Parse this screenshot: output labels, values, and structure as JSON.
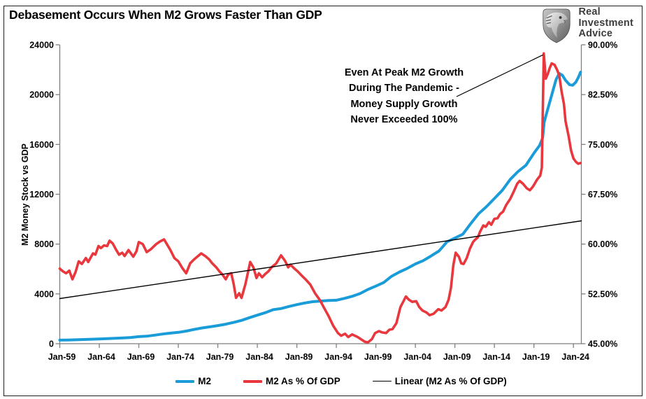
{
  "title": "Debasement Occurs When M2 Grows Faster Than GDP",
  "logo": {
    "lines": [
      "Real",
      "Investment",
      "Advice"
    ]
  },
  "annotation": {
    "text": "Even At Peak M2 Growth\nDuring The Pandemic -\nMoney Supply Growth\nNever Exceeded 100%"
  },
  "colors": {
    "m2_blue": "#199CD8",
    "pct_red": "#E8383D",
    "trend_black": "#000000",
    "axis_gray": "#7f7f7f",
    "logo_text": "#3d3d3d"
  },
  "legend": [
    {
      "label": "M2",
      "color": "#199CD8",
      "thick": 4
    },
    {
      "label": "M2 As % Of GDP",
      "color": "#E8383D",
      "thick": 4
    },
    {
      "label": "Linear (M2 As % Of GDP)",
      "color": "#000000",
      "thick": 1.5
    }
  ],
  "chart_data": {
    "type": "line",
    "title": "Debasement Occurs When M2 Grows Faster Than GDP",
    "grid": false,
    "legend_position": "bottom",
    "x_axis": {
      "tick_labels": [
        "Jan-59",
        "Jan-64",
        "Jan-69",
        "Jan-74",
        "Jan-79",
        "Jan-84",
        "Jan-89",
        "Jan-94",
        "Jan-99",
        "Jan-04",
        "Jan-09",
        "Jan-14",
        "Jan-19",
        "Jan-24"
      ],
      "tick_years": [
        1959,
        1964,
        1969,
        1974,
        1979,
        1984,
        1989,
        1994,
        1999,
        2004,
        2009,
        2014,
        2019,
        2024
      ],
      "range_years": [
        1959,
        2025
      ]
    },
    "left_axis": {
      "label": "M2 Money Stock vs GDP",
      "tick_values": [
        0,
        4000,
        8000,
        12000,
        16000,
        20000,
        24000
      ],
      "tick_labels": [
        "0",
        "4000",
        "8000",
        "12000",
        "16000",
        "20000",
        "24000"
      ],
      "range": [
        0,
        24000
      ]
    },
    "right_axis": {
      "tick_values": [
        45,
        52.5,
        60,
        67.5,
        75,
        82.5,
        90
      ],
      "tick_labels": [
        "45.00%",
        "52.50%",
        "60.00%",
        "67.50%",
        "75.00%",
        "82.50%",
        "90.00%"
      ],
      "range": [
        45,
        90
      ]
    },
    "series": [
      {
        "name": "M2",
        "axis": "left",
        "color": "#199CD8",
        "width": 4,
        "points": [
          [
            1959,
            287
          ],
          [
            1960,
            298
          ],
          [
            1961,
            315
          ],
          [
            1962,
            335
          ],
          [
            1963,
            357
          ],
          [
            1964,
            382
          ],
          [
            1965,
            408
          ],
          [
            1966,
            432
          ],
          [
            1967,
            462
          ],
          [
            1968,
            500
          ],
          [
            1969,
            567
          ],
          [
            1970,
            601
          ],
          [
            1971,
            686
          ],
          [
            1972,
            776
          ],
          [
            1973,
            850
          ],
          [
            1974,
            908
          ],
          [
            1975,
            1009
          ],
          [
            1976,
            1147
          ],
          [
            1977,
            1263
          ],
          [
            1978,
            1357
          ],
          [
            1979,
            1457
          ],
          [
            1980,
            1570
          ],
          [
            1981,
            1708
          ],
          [
            1982,
            1873
          ],
          [
            1983,
            2092
          ],
          [
            1984,
            2295
          ],
          [
            1985,
            2489
          ],
          [
            1986,
            2729
          ],
          [
            1987,
            2824
          ],
          [
            1988,
            2990
          ],
          [
            1989,
            3138
          ],
          [
            1990,
            3270
          ],
          [
            1991,
            3372
          ],
          [
            1992,
            3425
          ],
          [
            1993,
            3474
          ],
          [
            1994,
            3493
          ],
          [
            1995,
            3634
          ],
          [
            1996,
            3803
          ],
          [
            1997,
            4022
          ],
          [
            1998,
            4357
          ],
          [
            1999,
            4627
          ],
          [
            2000,
            4913
          ],
          [
            2001,
            5421
          ],
          [
            2002,
            5763
          ],
          [
            2003,
            6051
          ],
          [
            2004,
            6400
          ],
          [
            2005,
            6669
          ],
          [
            2006,
            7047
          ],
          [
            2007,
            7447
          ],
          [
            2008,
            8180
          ],
          [
            2009,
            8480
          ],
          [
            2010,
            8790
          ],
          [
            2011,
            9640
          ],
          [
            2012,
            10440
          ],
          [
            2013,
            11010
          ],
          [
            2014,
            11660
          ],
          [
            2015,
            12320
          ],
          [
            2016,
            13190
          ],
          [
            2017,
            13830
          ],
          [
            2018,
            14340
          ],
          [
            2019,
            15300
          ],
          [
            2019.7,
            15900
          ],
          [
            2020.1,
            16500
          ],
          [
            2020.3,
            17800
          ],
          [
            2020.6,
            18500
          ],
          [
            2021,
            19400
          ],
          [
            2021.4,
            20300
          ],
          [
            2021.8,
            21200
          ],
          [
            2022.2,
            21700
          ],
          [
            2022.6,
            21550
          ],
          [
            2023,
            21150
          ],
          [
            2023.5,
            20800
          ],
          [
            2023.9,
            20750
          ],
          [
            2024.3,
            21000
          ],
          [
            2024.6,
            21350
          ],
          [
            2024.9,
            21800
          ]
        ]
      },
      {
        "name": "M2 As % Of GDP",
        "axis": "right",
        "color": "#E8383D",
        "width": 3.6,
        "points": [
          [
            1959,
            56.3
          ],
          [
            1959.4,
            55.9
          ],
          [
            1959.8,
            55.6
          ],
          [
            1960.2,
            56
          ],
          [
            1960.6,
            54.7
          ],
          [
            1961,
            55.8
          ],
          [
            1961.4,
            57.4
          ],
          [
            1961.8,
            57
          ],
          [
            1962.3,
            57.9
          ],
          [
            1962.6,
            57.3
          ],
          [
            1963.2,
            58.6
          ],
          [
            1963.5,
            58.4
          ],
          [
            1963.9,
            59.7
          ],
          [
            1964.2,
            59.4
          ],
          [
            1964.6,
            59.8
          ],
          [
            1965,
            59.7
          ],
          [
            1965.3,
            60.5
          ],
          [
            1965.7,
            60.1
          ],
          [
            1966.1,
            59.2
          ],
          [
            1966.5,
            58.4
          ],
          [
            1966.9,
            58.7
          ],
          [
            1967.2,
            58.2
          ],
          [
            1967.7,
            59.1
          ],
          [
            1968.3,
            58.1
          ],
          [
            1968.7,
            58.9
          ],
          [
            1969,
            60.3
          ],
          [
            1969.5,
            60
          ],
          [
            1970,
            58.8
          ],
          [
            1970.5,
            59.2
          ],
          [
            1971.2,
            60
          ],
          [
            1971.7,
            60.4
          ],
          [
            1972.2,
            60.7
          ],
          [
            1973,
            59.1
          ],
          [
            1973.5,
            57.9
          ],
          [
            1974,
            57.4
          ],
          [
            1974.5,
            56.4
          ],
          [
            1975,
            55.6
          ],
          [
            1975.5,
            57.1
          ],
          [
            1976,
            57.7
          ],
          [
            1976.5,
            58.2
          ],
          [
            1976.9,
            58.6
          ],
          [
            1977.4,
            58.2
          ],
          [
            1977.9,
            57.7
          ],
          [
            1978.3,
            57.1
          ],
          [
            1978.8,
            56.5
          ],
          [
            1979.2,
            55.9
          ],
          [
            1979.6,
            55.4
          ],
          [
            1980,
            54.7
          ],
          [
            1980.3,
            55.4
          ],
          [
            1980.7,
            55.6
          ],
          [
            1981,
            54
          ],
          [
            1981.3,
            51.9
          ],
          [
            1981.7,
            52.6
          ],
          [
            1982,
            51.9
          ],
          [
            1982.5,
            54
          ],
          [
            1983.1,
            57.3
          ],
          [
            1983.5,
            56.5
          ],
          [
            1983.9,
            54.9
          ],
          [
            1984.2,
            55.6
          ],
          [
            1984.6,
            55
          ],
          [
            1985,
            55.5
          ],
          [
            1985.4,
            55.9
          ],
          [
            1985.8,
            56.5
          ],
          [
            1986.4,
            57.1
          ],
          [
            1987,
            58.3
          ],
          [
            1987.5,
            57.5
          ],
          [
            1987.9,
            56.5
          ],
          [
            1988.2,
            56.9
          ],
          [
            1988.7,
            56.3
          ],
          [
            1989.1,
            55.9
          ],
          [
            1989.5,
            55.4
          ],
          [
            1990.1,
            54.7
          ],
          [
            1990.7,
            53.9
          ],
          [
            1991.3,
            52.6
          ],
          [
            1991.9,
            51.6
          ],
          [
            1992.4,
            50.5
          ],
          [
            1993,
            49.2
          ],
          [
            1993.6,
            47.7
          ],
          [
            1994.2,
            46.6
          ],
          [
            1994.6,
            46.2
          ],
          [
            1995.1,
            46.5
          ],
          [
            1995.5,
            46
          ],
          [
            1996,
            46.4
          ],
          [
            1996.7,
            46
          ],
          [
            1997.2,
            45.6
          ],
          [
            1997.6,
            45.3
          ],
          [
            1998,
            45.2
          ],
          [
            1998.5,
            45.7
          ],
          [
            1998.9,
            46.6
          ],
          [
            1999.4,
            46.9
          ],
          [
            1999.8,
            46.7
          ],
          [
            2000.3,
            46.6
          ],
          [
            2000.7,
            47.1
          ],
          [
            2001.1,
            47.2
          ],
          [
            2001.6,
            48.1
          ],
          [
            2002.1,
            50.5
          ],
          [
            2002.8,
            52.1
          ],
          [
            2003.2,
            51.6
          ],
          [
            2003.6,
            51.3
          ],
          [
            2004.1,
            51.4
          ],
          [
            2004.5,
            50.5
          ],
          [
            2004.9,
            50
          ],
          [
            2005.4,
            49.7
          ],
          [
            2005.8,
            49.3
          ],
          [
            2006.3,
            49.5
          ],
          [
            2006.9,
            50.2
          ],
          [
            2007.3,
            50
          ],
          [
            2007.8,
            50.5
          ],
          [
            2008.2,
            51.6
          ],
          [
            2008.5,
            53.4
          ],
          [
            2008.8,
            56.8
          ],
          [
            2009.1,
            58.7
          ],
          [
            2009.5,
            58.1
          ],
          [
            2009.8,
            57.1
          ],
          [
            2010.1,
            57
          ],
          [
            2010.5,
            57.9
          ],
          [
            2010.9,
            59.3
          ],
          [
            2011.3,
            60.3
          ],
          [
            2011.6,
            60.7
          ],
          [
            2011.9,
            61
          ],
          [
            2012.2,
            61.9
          ],
          [
            2012.6,
            62.8
          ],
          [
            2012.9,
            62.6
          ],
          [
            2013.3,
            63.3
          ],
          [
            2013.6,
            62.9
          ],
          [
            2014,
            63.8
          ],
          [
            2014.4,
            63.9
          ],
          [
            2014.7,
            64.5
          ],
          [
            2015.1,
            64.9
          ],
          [
            2015.5,
            65.9
          ],
          [
            2016,
            66.8
          ],
          [
            2016.4,
            67.8
          ],
          [
            2016.9,
            69.1
          ],
          [
            2017.2,
            69.5
          ],
          [
            2017.6,
            69.1
          ],
          [
            2018.1,
            68.4
          ],
          [
            2018.5,
            68.1
          ],
          [
            2018.9,
            68.7
          ],
          [
            2019.4,
            69.7
          ],
          [
            2019.8,
            70.3
          ],
          [
            2020,
            71.5
          ],
          [
            2020.25,
            88.7
          ],
          [
            2020.5,
            84.9
          ],
          [
            2020.75,
            85.6
          ],
          [
            2021,
            86.5
          ],
          [
            2021.25,
            87.2
          ],
          [
            2021.6,
            87
          ],
          [
            2021.9,
            86.3
          ],
          [
            2022.2,
            85.4
          ],
          [
            2022.5,
            83
          ],
          [
            2022.8,
            81.1
          ],
          [
            2023,
            78.5
          ],
          [
            2023.4,
            76.2
          ],
          [
            2023.7,
            74.1
          ],
          [
            2024,
            72.9
          ],
          [
            2024.3,
            72.4
          ],
          [
            2024.6,
            72.1
          ],
          [
            2024.9,
            72.2
          ]
        ]
      },
      {
        "name": "Linear (M2 As % Of GDP)",
        "axis": "right",
        "color": "#000000",
        "width": 1.4,
        "points": [
          [
            1959,
            51.8
          ],
          [
            2025,
            63.5
          ]
        ]
      }
    ]
  }
}
